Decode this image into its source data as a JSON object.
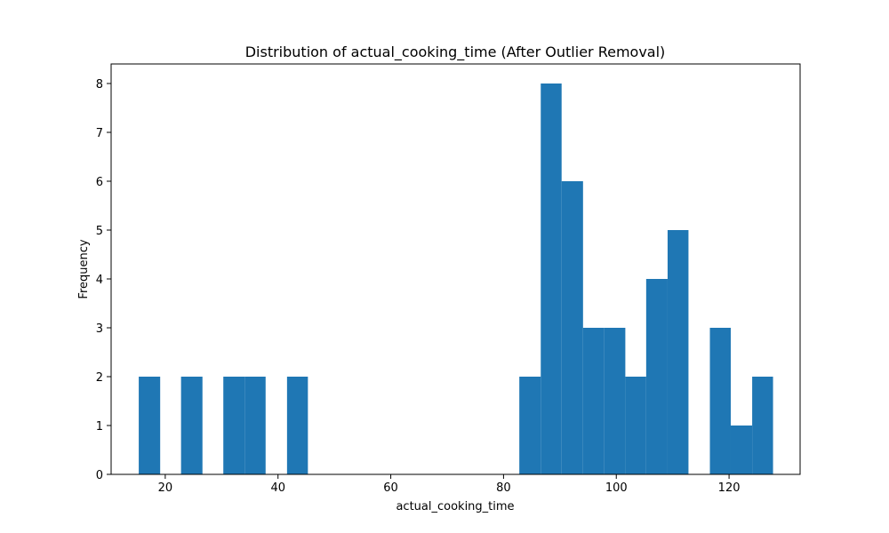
{
  "chart_data": {
    "type": "bar",
    "title": "Distribution of actual_cooking_time (After Outlier Removal)",
    "xlabel": "actual_cooking_time",
    "ylabel": "Frequency",
    "xlim": [
      10.4,
      132.6
    ],
    "ylim": [
      0,
      8.4
    ],
    "xticks": [
      20,
      40,
      60,
      80,
      100,
      120
    ],
    "yticks": [
      0,
      1,
      2,
      3,
      4,
      5,
      6,
      7,
      8
    ],
    "grid": false,
    "legend": "none",
    "color": "#1f77b4",
    "bins": [
      {
        "x0": 15.3,
        "x1": 19.1,
        "count": 2
      },
      {
        "x0": 19.1,
        "x1": 22.8,
        "count": 0
      },
      {
        "x0": 22.8,
        "x1": 26.6,
        "count": 2
      },
      {
        "x0": 26.6,
        "x1": 30.3,
        "count": 0
      },
      {
        "x0": 30.3,
        "x1": 34.1,
        "count": 2
      },
      {
        "x0": 34.1,
        "x1": 37.8,
        "count": 2
      },
      {
        "x0": 37.8,
        "x1": 41.6,
        "count": 0
      },
      {
        "x0": 41.6,
        "x1": 45.3,
        "count": 2
      },
      {
        "x0": 45.3,
        "x1": 49.1,
        "count": 0
      },
      {
        "x0": 49.1,
        "x1": 52.8,
        "count": 0
      },
      {
        "x0": 52.8,
        "x1": 56.6,
        "count": 0
      },
      {
        "x0": 56.6,
        "x1": 60.3,
        "count": 0
      },
      {
        "x0": 60.3,
        "x1": 64.1,
        "count": 0
      },
      {
        "x0": 64.1,
        "x1": 67.8,
        "count": 0
      },
      {
        "x0": 67.8,
        "x1": 71.6,
        "count": 0
      },
      {
        "x0": 71.6,
        "x1": 75.3,
        "count": 0
      },
      {
        "x0": 75.3,
        "x1": 79.1,
        "count": 0
      },
      {
        "x0": 79.1,
        "x1": 82.8,
        "count": 0
      },
      {
        "x0": 82.8,
        "x1": 86.6,
        "count": 2
      },
      {
        "x0": 86.6,
        "x1": 90.3,
        "count": 8
      },
      {
        "x0": 90.3,
        "x1": 94.1,
        "count": 6
      },
      {
        "x0": 94.1,
        "x1": 97.8,
        "count": 3
      },
      {
        "x0": 97.8,
        "x1": 101.6,
        "count": 3
      },
      {
        "x0": 101.6,
        "x1": 105.3,
        "count": 2
      },
      {
        "x0": 105.3,
        "x1": 109.1,
        "count": 4
      },
      {
        "x0": 109.1,
        "x1": 112.8,
        "count": 5
      },
      {
        "x0": 112.8,
        "x1": 116.6,
        "count": 0
      },
      {
        "x0": 116.6,
        "x1": 120.3,
        "count": 3
      },
      {
        "x0": 120.3,
        "x1": 124.1,
        "count": 1
      },
      {
        "x0": 124.1,
        "x1": 127.8,
        "count": 2
      }
    ]
  }
}
